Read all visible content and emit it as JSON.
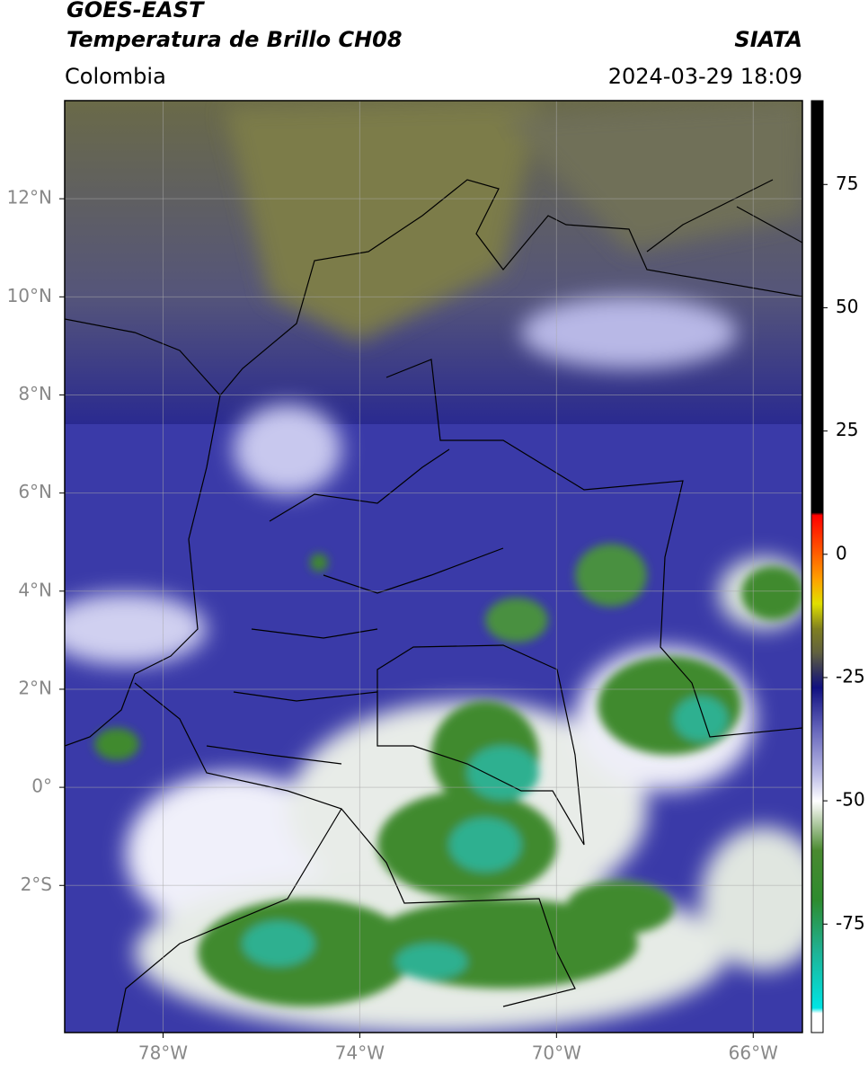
{
  "header": {
    "title": "GOES-EAST",
    "subtitle": "Temperatura de Brillo CH08",
    "region": "Colombia",
    "source": "SIATA",
    "datetime": "2024-03-29 18:09"
  },
  "map": {
    "lon_range": [
      -80,
      -65
    ],
    "lat_range": [
      -5,
      14
    ],
    "grid": true,
    "lon_ticks": [
      {
        "value": -78,
        "label": "78°W"
      },
      {
        "value": -74,
        "label": "74°W"
      },
      {
        "value": -70,
        "label": "70°W"
      },
      {
        "value": -66,
        "label": "66°W"
      }
    ],
    "lat_ticks": [
      {
        "value": 12,
        "label": "12°N"
      },
      {
        "value": 10,
        "label": "10°N"
      },
      {
        "value": 8,
        "label": "8°N"
      },
      {
        "value": 6,
        "label": "6°N"
      },
      {
        "value": 4,
        "label": "4°N"
      },
      {
        "value": 2,
        "label": "2°N"
      },
      {
        "value": 0,
        "label": "0°"
      },
      {
        "value": -2,
        "label": "2°S"
      }
    ]
  },
  "colorbar": {
    "range": [
      -97,
      92
    ],
    "ticks": [
      75,
      50,
      25,
      0,
      -25,
      -50,
      -75
    ],
    "stops": [
      {
        "value": -97,
        "color": "#ffffff"
      },
      {
        "value": -93,
        "color": "#ffffff"
      },
      {
        "value": -92,
        "color": "#00e5e5"
      },
      {
        "value": -80,
        "color": "#20b090"
      },
      {
        "value": -70,
        "color": "#2e8b2e"
      },
      {
        "value": -60,
        "color": "#4a8a30"
      },
      {
        "value": -52,
        "color": "#dfe8d8"
      },
      {
        "value": -50,
        "color": "#ffffff"
      },
      {
        "value": -45,
        "color": "#c0c0e8"
      },
      {
        "value": -35,
        "color": "#6060b8"
      },
      {
        "value": -27,
        "color": "#101080"
      },
      {
        "value": -24,
        "color": "#303060"
      },
      {
        "value": -20,
        "color": "#606040"
      },
      {
        "value": -15,
        "color": "#808020"
      },
      {
        "value": -10,
        "color": "#e0e000"
      },
      {
        "value": -5,
        "color": "#ffa000"
      },
      {
        "value": 0,
        "color": "#ff6000"
      },
      {
        "value": 8,
        "color": "#ff0000"
      },
      {
        "value": 8.5,
        "color": "#000000"
      },
      {
        "value": 92,
        "color": "#000000"
      }
    ]
  }
}
